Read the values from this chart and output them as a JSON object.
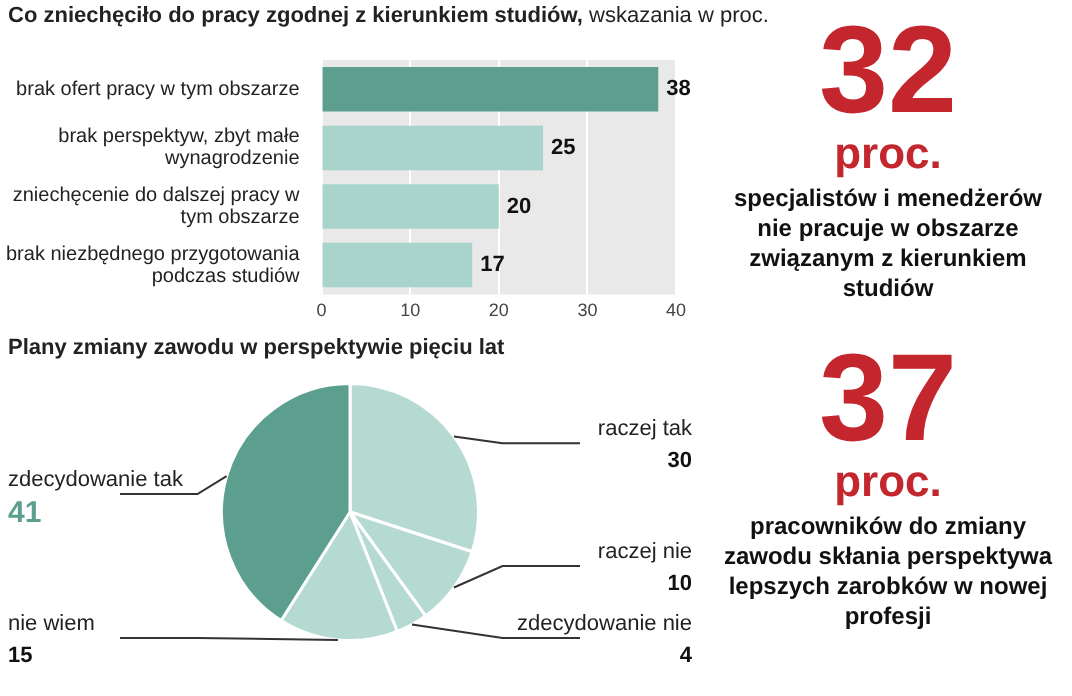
{
  "chart_data": [
    {
      "type": "bar",
      "orientation": "horizontal",
      "title": "Co zniechęciło do pracy zgodnej z kierunkiem studiów,",
      "subtitle": "wskazania w proc.",
      "categories": [
        "brak ofert pracy w tym obszarze",
        "brak perspektyw, zbyt małe wynagrodzenie",
        "zniechęcenie do dalszej pracy w tym obszarze",
        "brak niezbędnego przygotowania podczas studiów"
      ],
      "values": [
        38,
        25,
        20,
        17
      ],
      "colors": [
        "#5c9f8f",
        "#a8d4cb",
        "#a8d4cb",
        "#a8d4cb"
      ],
      "xlim": [
        0,
        40
      ],
      "xticks": [
        0,
        10,
        20,
        30,
        40
      ],
      "grid": "x",
      "data_labels": true
    },
    {
      "type": "pie",
      "title": "Plany zmiany zawodu  w perspektywie pięciu lat",
      "categories": [
        "raczej tak",
        "raczej nie",
        "zdecydowanie nie",
        "nie wiem",
        "zdecydowanie tak"
      ],
      "values": [
        30,
        10,
        4,
        15,
        41
      ],
      "colors": [
        "#b5dad2",
        "#b5dad2",
        "#b5dad2",
        "#b5dad2",
        "#5c9f8f"
      ],
      "data_labels": true
    },
    {
      "type": "other",
      "annotations": [
        "32",
        "proc.",
        "specjalistów i menedżerów nie pracuje w obszarze związanym z kierunkiem studiów",
        "37",
        "proc.",
        "pracowników do zmiany zawodu skłania perspektywa lepszych zarobków w nowej profesji"
      ]
    }
  ]
}
